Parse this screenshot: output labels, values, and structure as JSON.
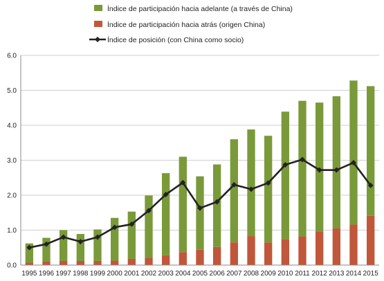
{
  "chart_data": {
    "type": "bar",
    "stacked": true,
    "categories": [
      "1995",
      "1996",
      "1997",
      "1998",
      "1999",
      "2000",
      "2001",
      "2002",
      "2003",
      "2004",
      "2005",
      "2006",
      "2007",
      "2008",
      "2009",
      "2010",
      "2011",
      "2012",
      "2013",
      "2014",
      "2015"
    ],
    "series": [
      {
        "name": "Índice de participación hacia adelante (a través de China)",
        "kind": "bar",
        "color": "#7a9a3a",
        "values": [
          0.55,
          0.68,
          0.88,
          0.77,
          0.9,
          1.22,
          1.35,
          1.78,
          2.35,
          2.73,
          2.1,
          2.36,
          2.95,
          3.05,
          3.05,
          3.65,
          3.88,
          3.7,
          3.78,
          4.12,
          3.71
        ]
      },
      {
        "name": "Índice de participación hacia atrás (origen China)",
        "kind": "bar",
        "color": "#c0573a",
        "values": [
          0.07,
          0.1,
          0.12,
          0.12,
          0.12,
          0.13,
          0.18,
          0.21,
          0.28,
          0.37,
          0.44,
          0.52,
          0.65,
          0.83,
          0.65,
          0.74,
          0.82,
          0.95,
          1.05,
          1.16,
          1.41
        ]
      },
      {
        "name": "Índice de posición (con China como socio)",
        "kind": "line",
        "color": "#222222",
        "marker": "diamond",
        "values": [
          0.5,
          0.6,
          0.8,
          0.67,
          0.8,
          1.08,
          1.17,
          1.56,
          2.02,
          2.36,
          1.63,
          1.81,
          2.3,
          2.17,
          2.35,
          2.87,
          3.02,
          2.72,
          2.72,
          2.93,
          2.28
        ]
      }
    ],
    "title": "",
    "xlabel": "",
    "ylabel": "",
    "ylim": [
      0,
      6
    ],
    "yticks": [
      "0.0",
      "1.0",
      "2.0",
      "3.0",
      "4.0",
      "5.0",
      "6.0"
    ],
    "grid": "horizontal",
    "legend_placement": "top-center"
  }
}
